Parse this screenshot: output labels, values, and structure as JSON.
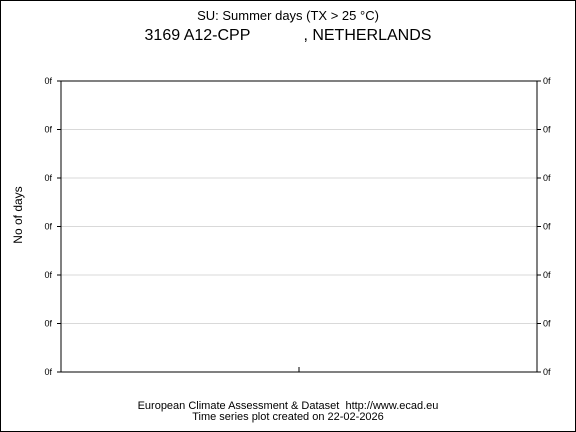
{
  "header": {
    "title": "SU: Summer days (TX > 25 °C)",
    "subtitle": "3169 A12-CPP            , NETHERLANDS"
  },
  "footer": {
    "line1": "European Climate Assessment & Dataset  http://www.ecad.eu",
    "line2": "Time series plot created on 22-02-2026"
  },
  "chart_data": {
    "type": "line",
    "title": "SU: Summer days (TX > 25 °C)",
    "subtitle": "3169 A12-CPP            , NETHERLANDS",
    "xlabel": "",
    "ylabel": "No of days",
    "x": [],
    "series": [],
    "y_tick_labels": [
      "0f",
      "0f",
      "0f",
      "0f",
      "0f",
      "0f",
      "0f"
    ],
    "ylim": [
      0,
      6
    ],
    "grid": true,
    "colors": {
      "grid": "#d9d9d9",
      "axis": "#000000"
    }
  }
}
